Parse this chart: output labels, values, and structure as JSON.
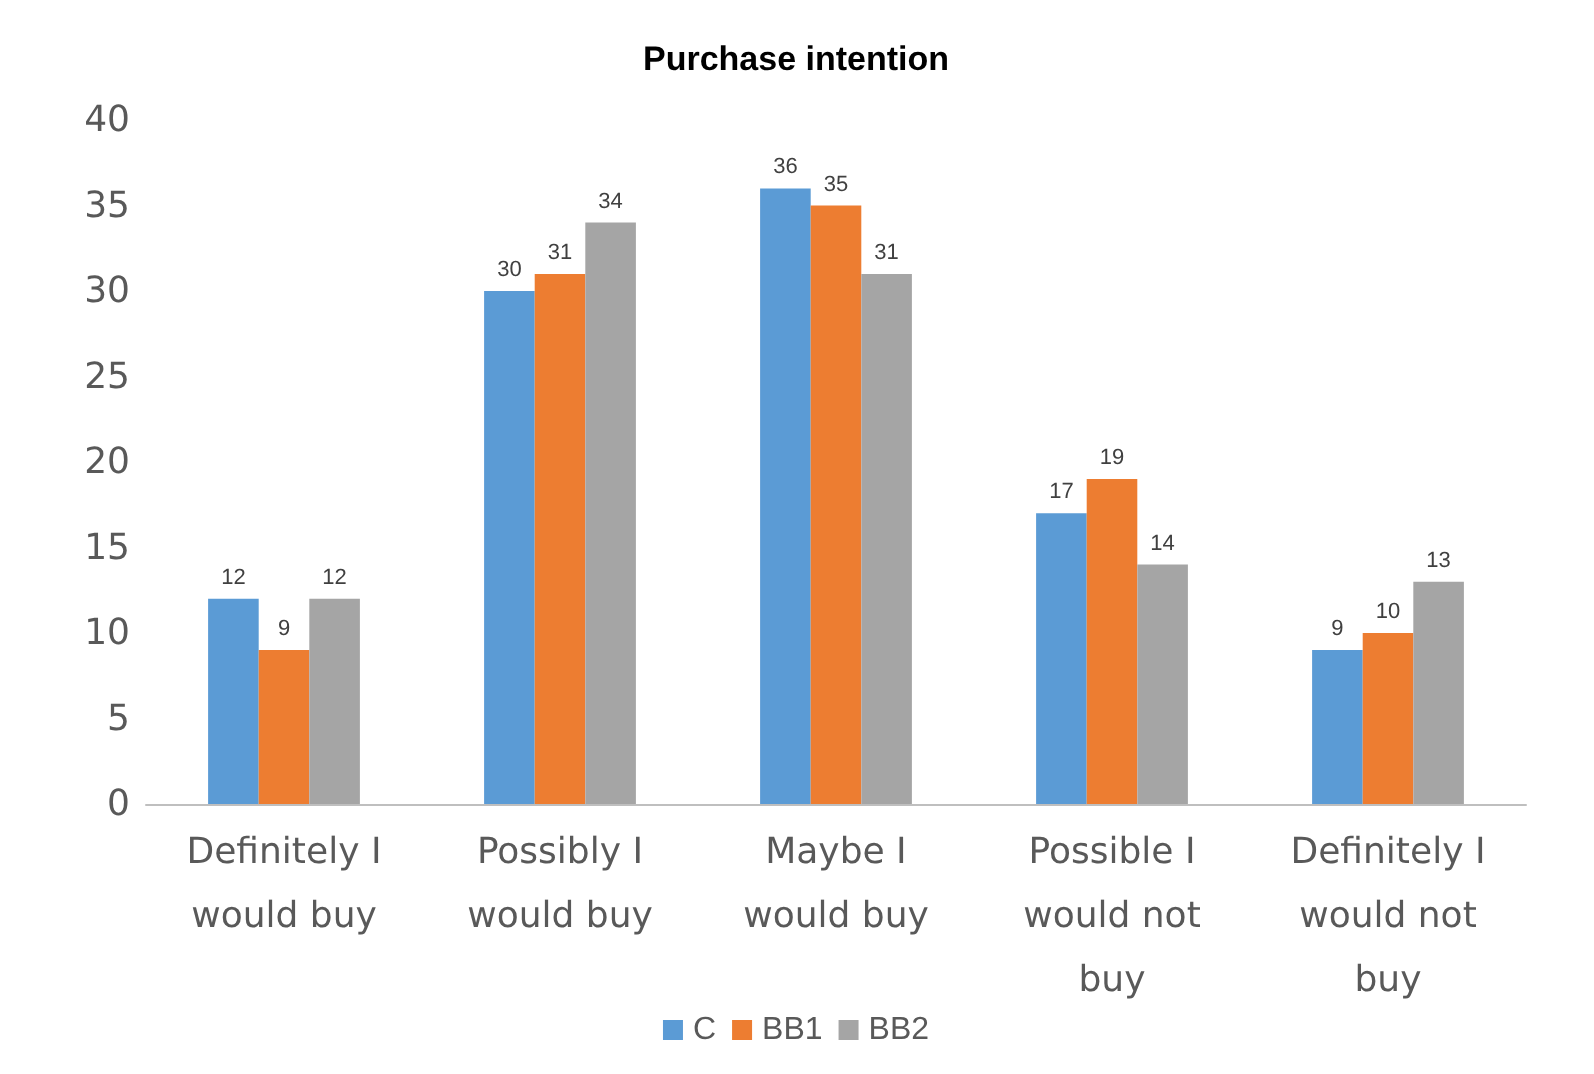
{
  "chart_data": {
    "type": "bar",
    "title": "Purchase intention",
    "categories": [
      "Definitely I would buy",
      "Possibly I would buy",
      "Maybe I would buy",
      "Possible I would not buy",
      "Definitely I would not buy"
    ],
    "series": [
      {
        "name": "C",
        "color": "#5b9bd5",
        "values": [
          12,
          30,
          36,
          17,
          9
        ]
      },
      {
        "name": "BB1",
        "color": "#ed7d31",
        "values": [
          9,
          31,
          35,
          19,
          10
        ]
      },
      {
        "name": "BB2",
        "color": "#a5a5a5",
        "values": [
          12,
          34,
          31,
          14,
          13
        ]
      }
    ],
    "ylim": [
      0,
      40
    ],
    "yticks": [
      0,
      5,
      10,
      15,
      20,
      25,
      30,
      35,
      40
    ],
    "grid": false,
    "legend": "bottom",
    "data_labels": true
  }
}
